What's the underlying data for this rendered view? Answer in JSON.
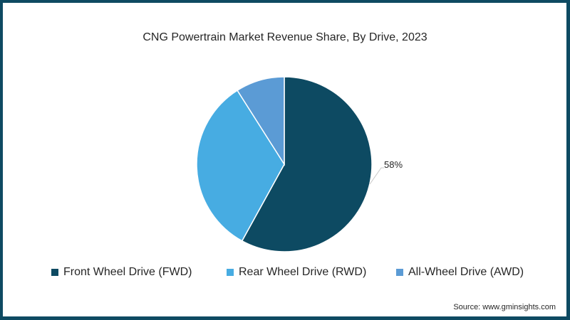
{
  "chart_data": {
    "type": "pie",
    "title": "CNG Powertrain Market Revenue Share, By Drive, 2023",
    "categories": [
      "Front Wheel Drive (FWD)",
      "Rear Wheel Drive (RWD)",
      "All-Wheel Drive (AWD)"
    ],
    "values": [
      58,
      33,
      9
    ],
    "colors": [
      "#0d4a62",
      "#47ace2",
      "#5b9bd5"
    ],
    "data_labels": [
      {
        "category": "Front Wheel Drive (FWD)",
        "text": "58%"
      }
    ],
    "legend_position": "bottom",
    "start_angle_deg": 0,
    "direction": "clockwise"
  },
  "header": {
    "title": "CNG Powertrain Market Revenue Share, By Drive, 2023"
  },
  "labels": {
    "fwd_pct": "58%"
  },
  "legend": {
    "items": [
      {
        "label": "Front Wheel Drive (FWD)",
        "color": "#0d4a62"
      },
      {
        "label": "Rear Wheel Drive (RWD)",
        "color": "#47ace2"
      },
      {
        "label": "All-Wheel Drive (AWD)",
        "color": "#5b9bd5"
      }
    ]
  },
  "footer": {
    "source": "Source: www.gminsights.com"
  },
  "theme": {
    "border_color": "#0e4a62"
  }
}
